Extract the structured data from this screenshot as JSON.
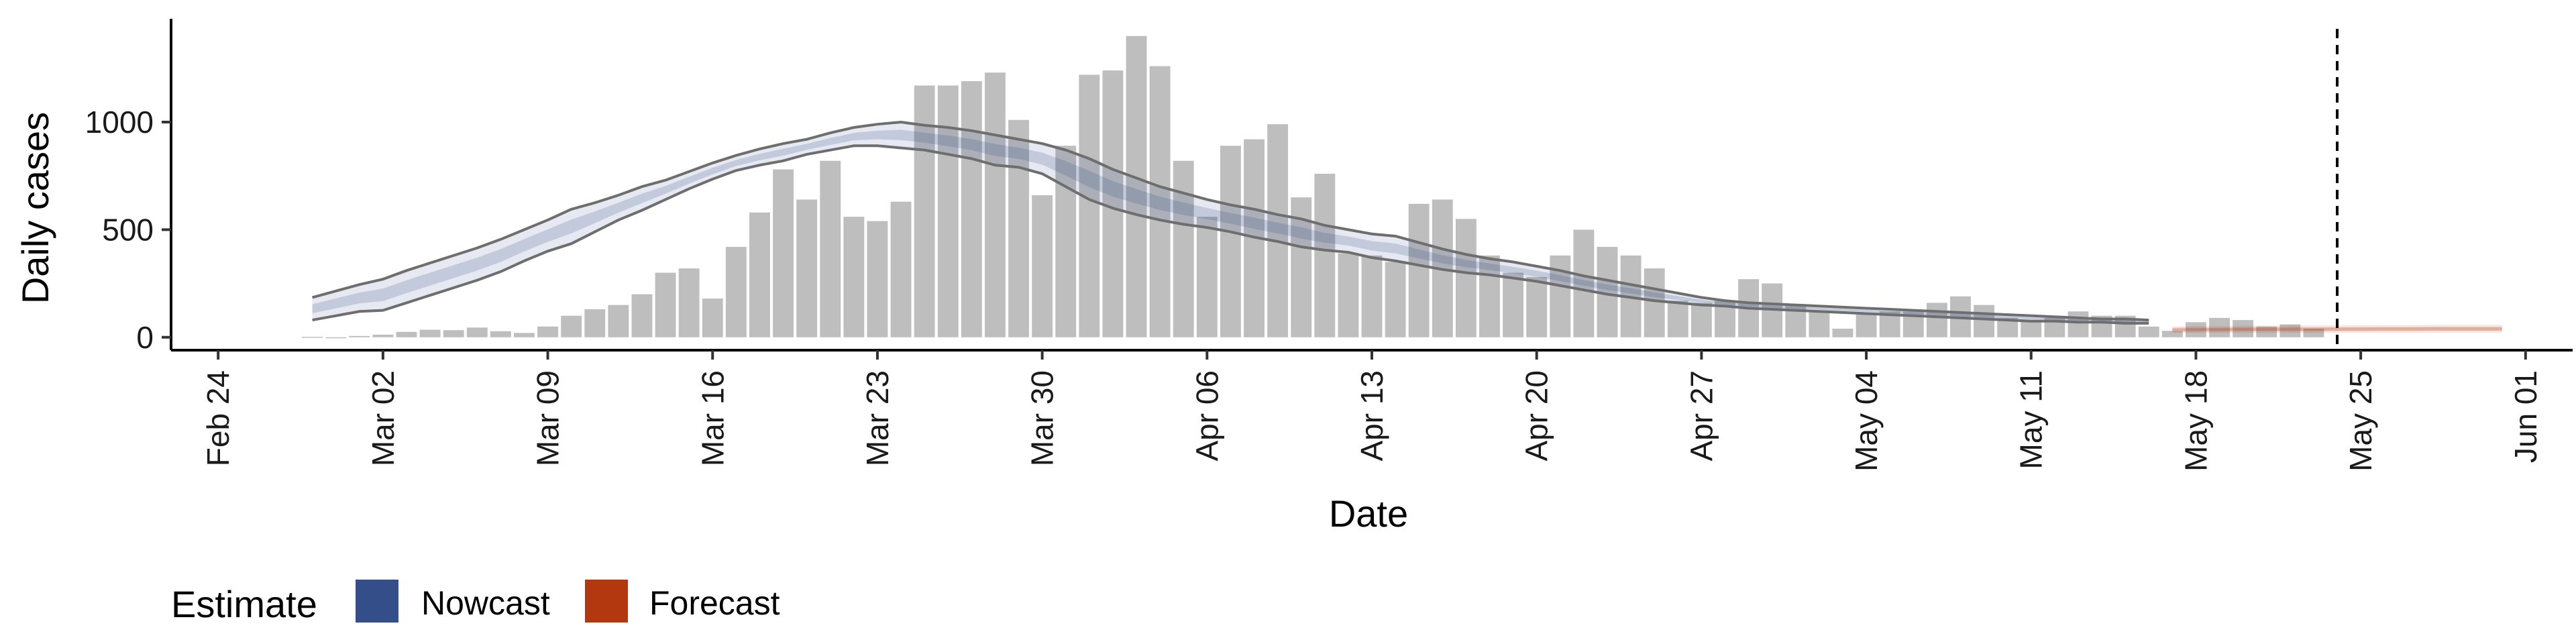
{
  "chart_data": {
    "type": "bar",
    "xlabel": "Date",
    "ylabel": "Daily cases",
    "xlim": [
      "2020-02-22",
      "2020-06-03"
    ],
    "ylim": [
      -60,
      1480
    ],
    "y_ticks": [
      0,
      500,
      1000
    ],
    "x_ticks": [
      {
        "date": "2020-02-24",
        "label": "Feb 24"
      },
      {
        "date": "2020-03-02",
        "label": "Mar 02"
      },
      {
        "date": "2020-03-09",
        "label": "Mar 09"
      },
      {
        "date": "2020-03-16",
        "label": "Mar 16"
      },
      {
        "date": "2020-03-23",
        "label": "Mar 23"
      },
      {
        "date": "2020-03-30",
        "label": "Mar 30"
      },
      {
        "date": "2020-04-06",
        "label": "Apr 06"
      },
      {
        "date": "2020-04-13",
        "label": "Apr 13"
      },
      {
        "date": "2020-04-20",
        "label": "Apr 20"
      },
      {
        "date": "2020-04-27",
        "label": "Apr 27"
      },
      {
        "date": "2020-05-04",
        "label": "May 04"
      },
      {
        "date": "2020-05-11",
        "label": "May 11"
      },
      {
        "date": "2020-05-18",
        "label": "May 18"
      },
      {
        "date": "2020-05-25",
        "label": "May 25"
      },
      {
        "date": "2020-06-01",
        "label": "Jun 01"
      }
    ],
    "reference_line": {
      "date": "2020-05-24",
      "style": "dashed"
    },
    "bars": {
      "name": "Daily cases",
      "color": "#bebebe",
      "start_date": "2020-02-28",
      "values": [
        2,
        0,
        6,
        12,
        25,
        35,
        33,
        45,
        28,
        20,
        50,
        100,
        130,
        150,
        200,
        300,
        320,
        180,
        420,
        580,
        780,
        640,
        820,
        560,
        540,
        630,
        1170,
        1170,
        1190,
        1230,
        1010,
        660,
        890,
        1220,
        1240,
        1400,
        1260,
        820,
        560,
        890,
        920,
        990,
        650,
        760,
        390,
        380,
        350,
        620,
        640,
        550,
        380,
        300,
        280,
        380,
        500,
        420,
        380,
        320,
        170,
        160,
        170,
        270,
        250,
        150,
        120,
        40,
        110,
        120,
        120,
        160,
        190,
        150,
        90,
        80,
        90,
        120,
        100,
        100,
        50,
        30,
        70,
        90,
        80,
        50,
        60,
        40
      ]
    },
    "estimates": [
      {
        "name": "Nowcast",
        "color": "#334e88",
        "start_date": "2020-02-28",
        "lower": [
          80,
          100,
          120,
          125,
          160,
          195,
          230,
          265,
          305,
          355,
          400,
          435,
          490,
          545,
          590,
          640,
          690,
          735,
          775,
          800,
          820,
          850,
          870,
          890,
          890,
          880,
          870,
          850,
          830,
          800,
          790,
          760,
          700,
          640,
          600,
          570,
          545,
          525,
          510,
          490,
          465,
          445,
          420,
          405,
          395,
          370,
          355,
          335,
          315,
          300,
          290,
          275,
          260,
          240,
          220,
          200,
          185,
          170,
          160,
          150,
          145,
          135,
          130,
          125,
          120,
          115,
          110,
          105,
          100,
          95,
          90,
          85,
          80,
          75,
          75,
          70,
          70,
          65,
          65
        ],
        "upper": [
          185,
          215,
          245,
          270,
          310,
          345,
          380,
          415,
          455,
          500,
          545,
          595,
          625,
          660,
          700,
          730,
          770,
          810,
          845,
          875,
          900,
          920,
          950,
          975,
          990,
          1000,
          985,
          975,
          960,
          940,
          920,
          900,
          870,
          830,
          780,
          740,
          700,
          670,
          640,
          615,
          595,
          570,
          550,
          520,
          500,
          480,
          470,
          440,
          410,
          385,
          365,
          350,
          330,
          310,
          285,
          265,
          245,
          225,
          205,
          185,
          170,
          160,
          155,
          150,
          145,
          140,
          135,
          130,
          125,
          120,
          115,
          110,
          105,
          100,
          95,
          90,
          85,
          85,
          80
        ]
      },
      {
        "name": "Forecast",
        "color": "#b3380f",
        "start_date": "2020-05-17",
        "lower": [
          20,
          20,
          20,
          20,
          20,
          20,
          20,
          20,
          20,
          20,
          20,
          20,
          20,
          20,
          20
        ],
        "upper": [
          50,
          52,
          52,
          54,
          54,
          55,
          55,
          56,
          56,
          57,
          57,
          58,
          58,
          58,
          58
        ]
      }
    ],
    "legend": {
      "title": "Estimate",
      "position": "bottom-left",
      "items": [
        {
          "label": "Nowcast",
          "color": "#334e88"
        },
        {
          "label": "Forecast",
          "color": "#b3380f"
        }
      ]
    },
    "grid": false
  }
}
